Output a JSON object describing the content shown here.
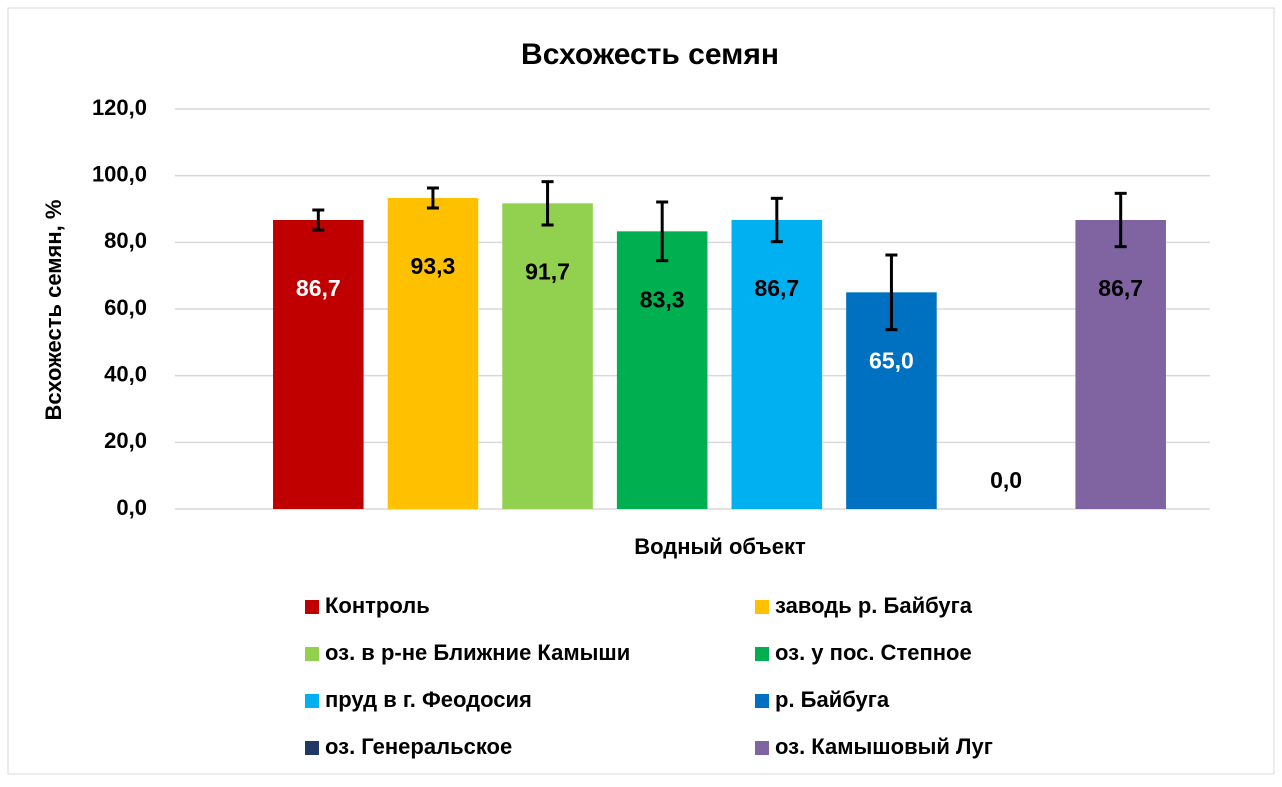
{
  "chart_data": {
    "type": "bar",
    "title": "Всхожесть семян",
    "x_label": "Водный объект",
    "y_label": "Всхожесть семян, %",
    "categories": [
      null
    ],
    "ylim": [
      0,
      120
    ],
    "yticks": [
      {
        "value": 0,
        "label": "0,0"
      },
      {
        "value": 20,
        "label": "20,0"
      },
      {
        "value": 40,
        "label": "40,0"
      },
      {
        "value": 60,
        "label": "60,0"
      },
      {
        "value": 80,
        "label": "80,0"
      },
      {
        "value": 100,
        "label": "100,0"
      },
      {
        "value": 120,
        "label": "120,0"
      }
    ],
    "grid": true,
    "legend": "bottom",
    "series": [
      {
        "name": "Контроль",
        "color": "#c00000",
        "values": [
          86.7
        ],
        "value_labels": [
          "86,7"
        ],
        "errors": [
          3
        ]
      },
      {
        "name": "заводь р. Байбуга",
        "color": "#ffc000",
        "values": [
          93.3
        ],
        "value_labels": [
          "93,3"
        ],
        "errors": [
          3
        ]
      },
      {
        "name": "оз. в р-не Ближние Камыши",
        "color": "#92d050",
        "values": [
          91.7
        ],
        "value_labels": [
          "91,7"
        ],
        "errors": [
          6.5
        ]
      },
      {
        "name": "оз. у пос. Степное",
        "color": "#00b050",
        "values": [
          83.3
        ],
        "value_labels": [
          "83,3"
        ],
        "errors": [
          8.8
        ]
      },
      {
        "name": "пруд в г. Феодосия",
        "color": "#00b0f0",
        "values": [
          86.7
        ],
        "value_labels": [
          "86,7"
        ],
        "errors": [
          6.5
        ]
      },
      {
        "name": "р. Байбуга",
        "color": "#0070c0",
        "values": [
          65.0
        ],
        "value_labels": [
          "65,0"
        ],
        "errors": [
          11.2
        ]
      },
      {
        "name": "оз. Генеральское",
        "color": "#203864",
        "values": [
          0.0
        ],
        "value_labels": [
          "0,0"
        ],
        "errors": [
          0
        ]
      },
      {
        "name": "оз. Камышовый Луг",
        "color": "#8064a2",
        "values": [
          86.7
        ],
        "value_labels": [
          "86,7"
        ],
        "errors": [
          8
        ]
      }
    ]
  }
}
